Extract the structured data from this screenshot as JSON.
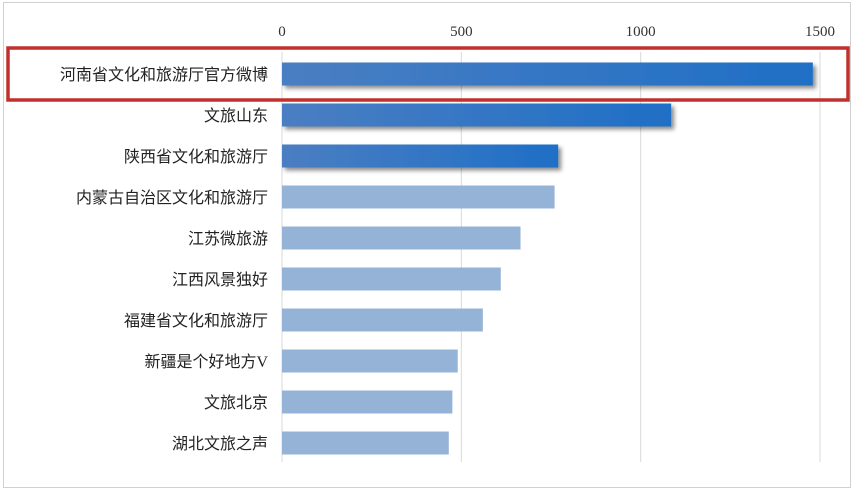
{
  "chart_data": {
    "type": "bar",
    "orientation": "horizontal",
    "title": "",
    "xlabel": "",
    "ylabel": "",
    "xlim": [
      0,
      1500
    ],
    "x_ticks": [
      0,
      500,
      1000,
      1500
    ],
    "x_axis_position": "top",
    "grid": "vertical",
    "categories": [
      "河南省文化和旅游厅官方微博",
      "文旅山东",
      "陕西省文化和旅游厅",
      "内蒙古自治区文化和旅游厅",
      "江苏微旅游",
      "江西风景独好",
      "福建省文化和旅游厅",
      "新疆是个好地方V",
      "文旅北京",
      "湖北文旅之声"
    ],
    "values": [
      1480,
      1085,
      770,
      760,
      665,
      610,
      560,
      490,
      475,
      465
    ],
    "highlighted_top": 3,
    "highlight_box_category": "河南省文化和旅游厅官方微博",
    "colors": {
      "highlight_bar_start": "#4a7ec2",
      "highlight_bar_end": "#1f6fc6",
      "normal_bar": "#95b3d7",
      "box": "#c0302c"
    }
  }
}
